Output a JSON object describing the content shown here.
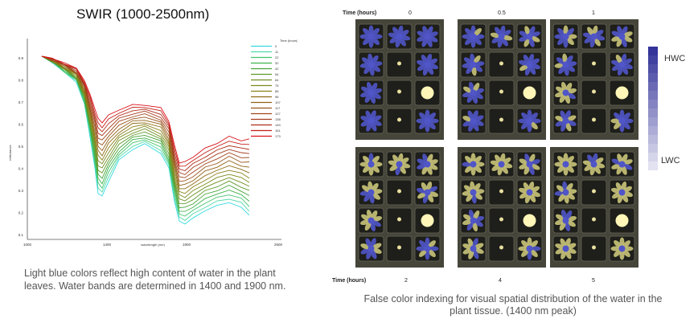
{
  "spectra": {
    "title": "SWIR (1000-2500nm)",
    "legend_header": "Time (hours)",
    "legend_entries": [
      "0",
      "11",
      "22",
      "32",
      "42",
      "54",
      "64",
      "75",
      "85",
      "96",
      "107",
      "117",
      "127",
      "138",
      "149",
      "161",
      "173"
    ],
    "legend_colors": [
      "#36d8df",
      "#4fd9a8",
      "#42c46c",
      "#3fb24b",
      "#4aa43a",
      "#5c9a2a",
      "#6f8f20",
      "#7b8a1b",
      "#8a7f18",
      "#8e6c16",
      "#926117",
      "#99541b",
      "#a0471c",
      "#a63a1b",
      "#b02d1a",
      "#c21f16",
      "#d9121b"
    ],
    "x_ticks": [
      "1000",
      "1400",
      "1900",
      "2500"
    ],
    "y_ticks": [
      "0.9",
      "0.8",
      "0.7",
      "0.6",
      "0.5",
      "0.4",
      "0.3",
      "0.2",
      "0.1"
    ],
    "xlabel": "wavelength (nm)",
    "ylabel": "reflectance",
    "caption": "Light blue colors reflect high content of water in the plant leaves. Water bands are determined in 1400 and 1900 nm."
  },
  "false_color": {
    "top_time_label": "Time (hours)",
    "bottom_time_label": "Time (hours)",
    "top_times": [
      "0",
      "0.5",
      "1"
    ],
    "bottom_times": [
      "2",
      "4",
      "5"
    ],
    "scale_high": "HWC",
    "scale_low": "LWC",
    "caption": "False color indexing for visual spatial distribution of the water in the plant tissue. (1400 nm peak)"
  },
  "colors": {
    "hwc": "#34349a",
    "lwc": "#e2e2f0",
    "plant_blue": "#5055c8",
    "plant_dry": "#c9c47a",
    "tray": "#2f2f28"
  }
}
